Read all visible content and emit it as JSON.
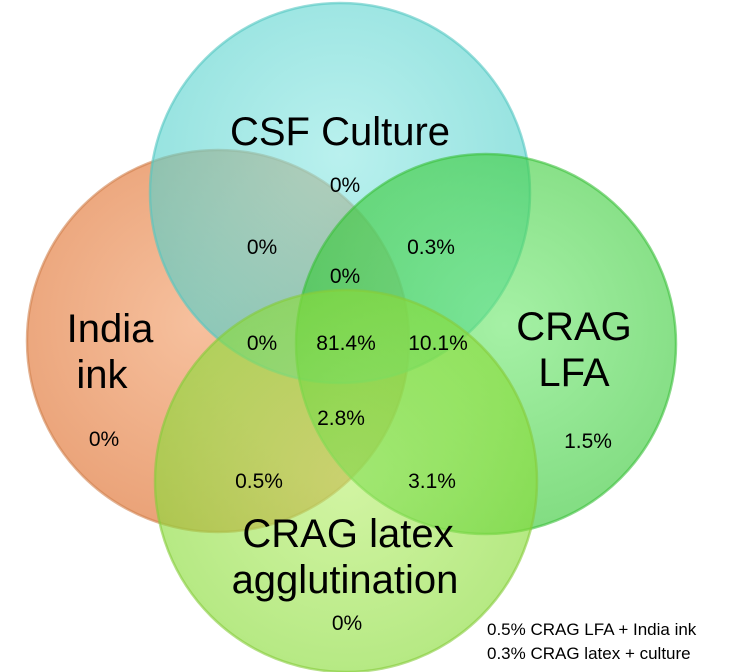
{
  "sets": {
    "csf_culture": {
      "label": "CSF Culture",
      "color": "#5fd6d2"
    },
    "india_ink": {
      "label_line1": "India",
      "label_line2": "ink",
      "color": "#e98a4e"
    },
    "crag_lfa": {
      "label_line1": "CRAG",
      "label_line2": "LFA",
      "color": "#3fd43f"
    },
    "crag_latex": {
      "label_line1": "CRAG latex",
      "label_line2": "agglutination",
      "color": "#8fe03a"
    }
  },
  "regions": {
    "culture_only": "0%",
    "india_ink_only": "0%",
    "crag_lfa_only": "1.5%",
    "crag_latex_only": "0%",
    "india_ink_culture": "0%",
    "culture_lfa": "0.3%",
    "culture_lfa_ink": "0%",
    "ink_culture_latex": "0%",
    "all_four": "81.4%",
    "lfa_latex_culture": "10.1%",
    "lfa_latex_ink": "2.8%",
    "ink_latex": "0.5%",
    "lfa_latex": "3.1%"
  },
  "footnotes": [
    "0.5% CRAG  LFA + India ink",
    "0.3% CRAG  latex  + culture"
  ]
}
